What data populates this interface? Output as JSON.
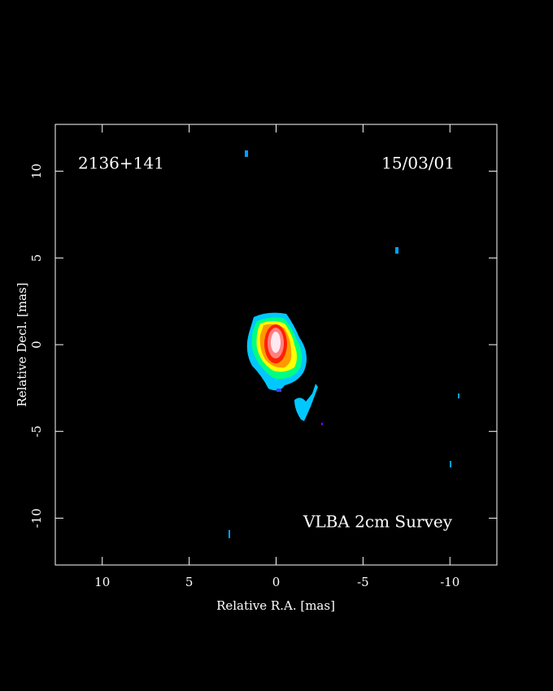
{
  "chart_data": {
    "type": "image",
    "source": "2136+141",
    "date": "15/03/01",
    "annotation": "VLBA 2cm Survey",
    "x_label": "Relative R.A. [mas]",
    "y_label": "Relative Decl. [mas]",
    "xlim": [
      12.7,
      -12.7
    ],
    "ylim": [
      -12.7,
      12.7
    ],
    "xticks": [
      10,
      5,
      0,
      -5,
      -10
    ],
    "yticks": [
      10,
      5,
      0,
      -5,
      -10
    ]
  }
}
